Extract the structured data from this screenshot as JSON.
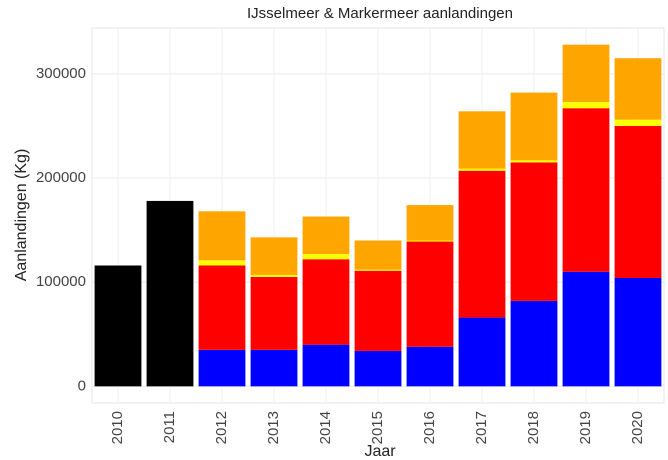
{
  "chart_data": {
    "type": "stacked_bar",
    "title": "IJsselmeer & Markermeer aanlandingen",
    "x_label": "Jaar",
    "y_label": "Aanlandingen (Kg)",
    "categories": [
      "2010",
      "2011",
      "2012",
      "2013",
      "2014",
      "2015",
      "2016",
      "2017",
      "2018",
      "2019",
      "2020"
    ],
    "series": [
      {
        "color": "#000000",
        "values": [
          116000,
          178000,
          null,
          null,
          null,
          null,
          null,
          null,
          null,
          null,
          null
        ]
      },
      {
        "color": "#0000ff",
        "values": [
          null,
          null,
          35000,
          35000,
          40000,
          34000,
          38000,
          66000,
          82000,
          110000,
          104000
        ]
      },
      {
        "color": "#ff0000",
        "values": [
          null,
          null,
          81000,
          70000,
          82000,
          77000,
          101000,
          141000,
          133000,
          157000,
          146000
        ]
      },
      {
        "color": "#ffff00",
        "values": [
          null,
          null,
          5000,
          2000,
          5000,
          1000,
          1000,
          2000,
          2000,
          6000,
          6000
        ]
      },
      {
        "color": "#ffa500",
        "values": [
          null,
          null,
          47000,
          36000,
          36000,
          28000,
          34000,
          55000,
          65000,
          55000,
          59000
        ]
      }
    ],
    "ylim": [
      -16000,
      344000
    ],
    "yticks": [
      0,
      100000,
      200000,
      300000
    ],
    "grid": true
  }
}
